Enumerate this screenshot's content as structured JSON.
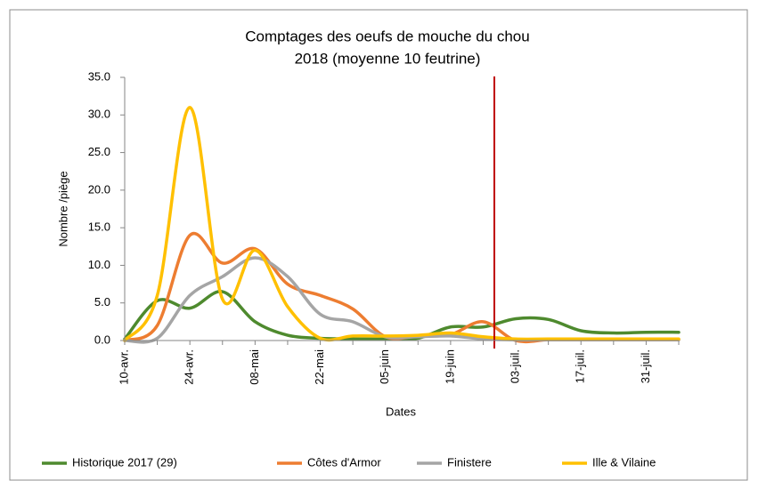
{
  "chart_data": {
    "type": "line",
    "title": "Comptages des oeufs de mouche du chou",
    "subtitle": "2018 (moyenne 10 feutrine)",
    "x_label": "Dates",
    "y_label": "Nombre /piège",
    "categories": [
      "10-avr.",
      null,
      "24-avr.",
      null,
      "08-mai",
      null,
      "22-mai",
      null,
      "05-juin",
      null,
      "19-juin",
      null,
      "03-juil.",
      null,
      "17-juil.",
      null,
      "31-juil.",
      null
    ],
    "series": [
      {
        "name": "Historique 2017  (29)",
        "color": "#4e8a2e",
        "values": [
          0.2,
          5.3,
          4.3,
          6.5,
          2.5,
          0.7,
          0.3,
          0.2,
          0.2,
          0.3,
          1.8,
          1.8,
          2.9,
          2.8,
          1.3,
          1.0,
          1.1,
          1.1
        ]
      },
      {
        "name": "Côtes d'Armor",
        "color": "#ed7d31",
        "values": [
          0,
          2,
          14,
          10.3,
          12.2,
          7.5,
          6,
          4.2,
          0.5,
          0.6,
          0.8,
          2.5,
          0,
          0.1,
          0.1,
          0.1,
          0.1,
          0.1
        ]
      },
      {
        "name": "Finistere",
        "color": "#a5a5a5",
        "values": [
          0,
          0.3,
          6,
          8.5,
          11,
          8.5,
          3.5,
          2.5,
          0.5,
          0.5,
          0.6,
          0.2,
          0.1,
          0.1,
          0.1,
          0.1,
          0.1,
          0.1
        ]
      },
      {
        "name": "Ille & Vilaine",
        "color": "#ffc000",
        "values": [
          0,
          6,
          31,
          5.5,
          12,
          4.5,
          0.3,
          0.6,
          0.6,
          0.7,
          1,
          0.5,
          0.2,
          0.2,
          0.2,
          0.2,
          0.2,
          0.2
        ]
      }
    ],
    "ylim": [
      0,
      35
    ],
    "yticks": [
      {
        "value": 0,
        "label": "0.0"
      },
      {
        "value": 5,
        "label": "5.0"
      },
      {
        "value": 10,
        "label": "10.0"
      },
      {
        "value": 15,
        "label": "15.0"
      },
      {
        "value": 20,
        "label": "20.0"
      },
      {
        "value": 25,
        "label": "25.0"
      },
      {
        "value": 30,
        "label": "30.0"
      },
      {
        "value": 35,
        "label": "35.0"
      }
    ],
    "smooth": true,
    "legend": "bottom"
  }
}
